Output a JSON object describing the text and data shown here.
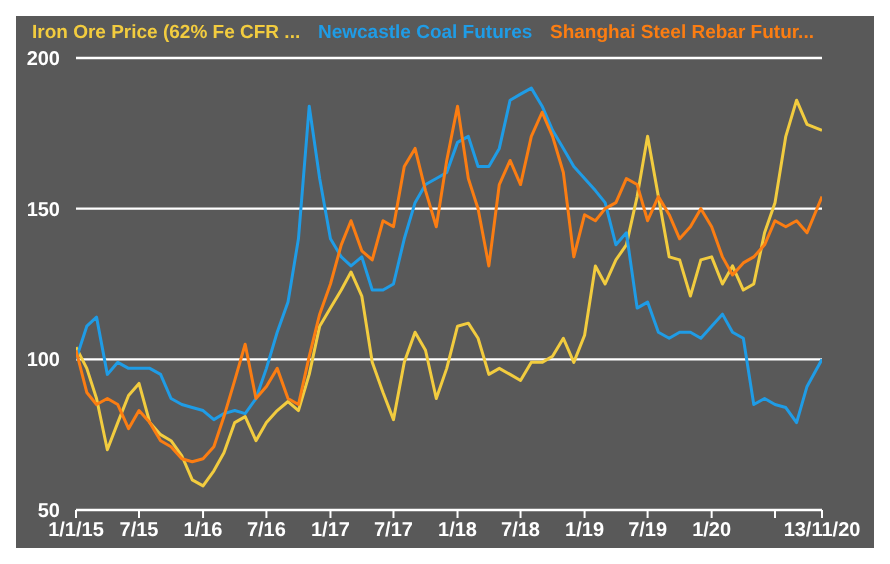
{
  "chart_data": {
    "type": "line",
    "legend": "top",
    "grid": "y",
    "marker": "none",
    "line_style": "solid",
    "x": [
      "2015-01",
      "2015-02",
      "2015-03",
      "2015-04",
      "2015-05",
      "2015-06",
      "2015-07",
      "2015-08",
      "2015-09",
      "2015-10",
      "2015-11",
      "2015-12",
      "2016-01",
      "2016-02",
      "2016-03",
      "2016-04",
      "2016-05",
      "2016-06",
      "2016-07",
      "2016-08",
      "2016-09",
      "2016-10",
      "2016-11",
      "2016-12",
      "2017-01",
      "2017-02",
      "2017-03",
      "2017-04",
      "2017-05",
      "2017-06",
      "2017-07",
      "2017-08",
      "2017-09",
      "2017-10",
      "2017-11",
      "2017-12",
      "2018-01",
      "2018-02",
      "2018-03",
      "2018-04",
      "2018-05",
      "2018-06",
      "2018-07",
      "2018-08",
      "2018-09",
      "2018-10",
      "2018-11",
      "2018-12",
      "2019-01",
      "2019-02",
      "2019-03",
      "2019-04",
      "2019-05",
      "2019-06",
      "2019-07",
      "2019-08",
      "2019-09",
      "2019-10",
      "2019-11",
      "2019-12",
      "2020-01",
      "2020-02",
      "2020-03",
      "2020-04",
      "2020-05",
      "2020-06",
      "2020-07",
      "2020-08",
      "2020-09",
      "2020-10",
      "2020-11-13"
    ],
    "series": [
      {
        "name": "Iron Ore Price (62% Fe CFR ...",
        "color": "#f2cc3f",
        "values": [
          104,
          97,
          87,
          70,
          79,
          88,
          92,
          79,
          75,
          73,
          68,
          60,
          58,
          63,
          69,
          79,
          81,
          73,
          79,
          83,
          86,
          83,
          95,
          111,
          117,
          123,
          129,
          121,
          99,
          89,
          80,
          99,
          109,
          103,
          87,
          97,
          111,
          112,
          107,
          95,
          97,
          95,
          93,
          99,
          99,
          101,
          107,
          99,
          108,
          131,
          125,
          133,
          138,
          154,
          174,
          154,
          134,
          133,
          121,
          133,
          134,
          125,
          131,
          123,
          125,
          142,
          152,
          174,
          186,
          178,
          176
        ]
      },
      {
        "name": "Newcastle Coal Futures",
        "color": "#1f9ce6",
        "values": [
          100,
          111,
          114,
          95,
          99,
          97,
          97,
          97,
          95,
          87,
          85,
          84,
          83,
          80,
          82,
          83,
          82,
          87,
          97,
          109,
          119,
          140,
          184,
          160,
          140,
          134,
          131,
          134,
          123,
          123,
          125,
          140,
          152,
          158,
          160,
          162,
          172,
          174,
          164,
          164,
          170,
          186,
          188,
          190,
          184,
          176,
          170,
          164,
          160,
          156,
          152,
          138,
          142,
          117,
          119,
          109,
          107,
          109,
          109,
          107,
          111,
          115,
          109,
          107,
          85,
          87,
          85,
          84,
          79,
          91,
          100
        ]
      },
      {
        "name": "Shanghai Steel Rebar Futur...",
        "color": "#fb7d12",
        "values": [
          103,
          89,
          85,
          87,
          85,
          77,
          83,
          79,
          73,
          71,
          67,
          66,
          67,
          71,
          81,
          93,
          105,
          87,
          91,
          97,
          87,
          85,
          101,
          115,
          125,
          138,
          146,
          136,
          133,
          146,
          144,
          164,
          170,
          156,
          144,
          166,
          184,
          160,
          150,
          131,
          158,
          166,
          158,
          174,
          182,
          174,
          162,
          134,
          148,
          146,
          150,
          152,
          160,
          158,
          146,
          154,
          148,
          140,
          144,
          150,
          144,
          134,
          128,
          132,
          134,
          138,
          146,
          144,
          146,
          142,
          154
        ]
      }
    ],
    "xlim": [
      "2015-01-01",
      "2020-11-13"
    ],
    "xticks": [
      {
        "value": "2015-01-01",
        "label": "1/1/15"
      },
      {
        "value": "2015-07-01",
        "label": "7/15"
      },
      {
        "value": "2016-01-01",
        "label": "1/16"
      },
      {
        "value": "2016-07-01",
        "label": "7/16"
      },
      {
        "value": "2017-01-01",
        "label": "1/17"
      },
      {
        "value": "2017-07-01",
        "label": "7/17"
      },
      {
        "value": "2018-01-01",
        "label": "1/18"
      },
      {
        "value": "2018-07-01",
        "label": "7/18"
      },
      {
        "value": "2019-01-01",
        "label": "1/19"
      },
      {
        "value": "2019-07-01",
        "label": "7/19"
      },
      {
        "value": "2020-01-01",
        "label": "1/20"
      },
      {
        "value": "2020-07-01",
        "label": null
      },
      {
        "value": "2020-11-13",
        "label": "13/11/20"
      }
    ],
    "ylim": [
      50,
      200
    ],
    "yticks": [
      50,
      100,
      150,
      200
    ]
  }
}
